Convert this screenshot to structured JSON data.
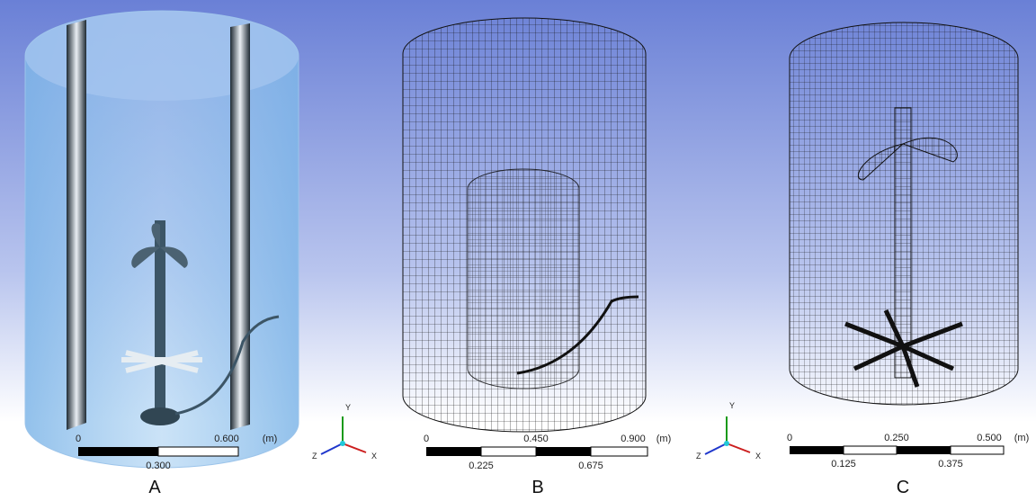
{
  "panels": [
    {
      "label": "A",
      "scale_bar": {
        "top_labels": [
          "0",
          "0.600"
        ],
        "unit": "(m)",
        "bottom_labels": [
          "0.300"
        ]
      }
    },
    {
      "label": "B",
      "scale_bar": {
        "top_labels": [
          "0",
          "0.450",
          "0.900"
        ],
        "unit": "(m)",
        "bottom_labels": [
          "0.225",
          "0.675"
        ]
      }
    },
    {
      "label": "C",
      "scale_bar": {
        "top_labels": [
          "0",
          "0.250",
          "0.500"
        ],
        "unit": "(m)",
        "bottom_labels": [
          "0.125",
          "0.375"
        ]
      }
    }
  ],
  "triads": [
    {
      "y": "Y",
      "z": "Z",
      "x": "X"
    },
    {
      "y": "Y",
      "z": "Z",
      "x": "X"
    }
  ]
}
